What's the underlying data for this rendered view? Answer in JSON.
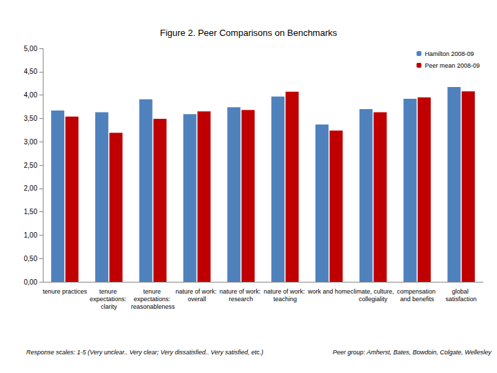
{
  "chart_data": {
    "type": "bar",
    "title": "Figure 2. Peer Comparisons on Benchmarks",
    "categories": [
      "tenure practices",
      "tenure expectations: clarity",
      "tenure expectations: reasonableness",
      "nature of work: overall",
      "nature of work: research",
      "nature of work: teaching",
      "work and home",
      "climate, culture, collegiality",
      "compensation and benefits",
      "global satisfaction"
    ],
    "series": [
      {
        "name": "Hamilton 2008-09",
        "color": "#4f81bd",
        "values": [
          3.67,
          3.63,
          3.91,
          3.59,
          3.74,
          3.97,
          3.37,
          3.7,
          3.92,
          4.17
        ]
      },
      {
        "name": "Peer mean 2008-09",
        "color": "#c00000",
        "values": [
          3.54,
          3.19,
          3.49,
          3.65,
          3.68,
          4.07,
          3.24,
          3.63,
          3.95,
          4.08
        ]
      }
    ],
    "ylim": [
      0,
      5
    ],
    "yticks": [
      {
        "value": 0,
        "label": "0,00"
      },
      {
        "value": 0.5,
        "label": "0,50"
      },
      {
        "value": 1,
        "label": "1,00"
      },
      {
        "value": 1.5,
        "label": "1,50"
      },
      {
        "value": 2,
        "label": "2,00"
      },
      {
        "value": 2.5,
        "label": "2,50"
      },
      {
        "value": 3,
        "label": "3,00"
      },
      {
        "value": 3.5,
        "label": "3,50"
      },
      {
        "value": 4,
        "label": "4,00"
      },
      {
        "value": 4.5,
        "label": "4,50"
      },
      {
        "value": 5,
        "label": "5,00"
      }
    ],
    "grid": false,
    "legend": "upper right",
    "annotations": [
      "Response scales: 1-5 (Very unclear.. Very clear; Very dissatisfied.. Very satisfied, etc.)",
      "Peer group: Amherst, Bates, Bowdoin, Colgate, Wellesley"
    ]
  }
}
